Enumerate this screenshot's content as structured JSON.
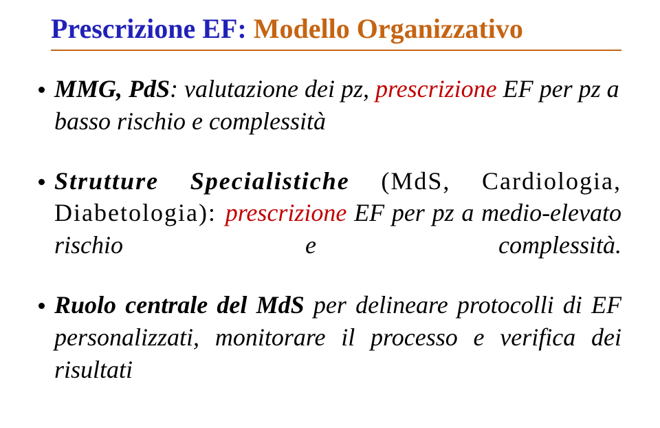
{
  "title": {
    "part1": "Prescrizione EF:",
    "part2": "Modello Organizzativo",
    "color1": "#2121b9",
    "color2": "#c56413",
    "fontsize": 40
  },
  "rule_color": "#c56413",
  "body_fontsize": 36,
  "emphasis_color": "#c00000",
  "bullets": [
    {
      "seg1_bold": "MMG, PdS",
      "seg2": ": valutazione dei pz, ",
      "seg3_em": "prescrizione",
      "seg4_ital": " EF per pz a basso rischio e complessità"
    },
    {
      "seg1_bold": "Strutture Specialistiche",
      "seg2": " (MdS, Cardiologia, Diabetologia): ",
      "seg3_em": "prescrizione",
      "seg4_ital": " EF per pz a medio-elevato rischio e complessità.",
      "justify_last": true
    },
    {
      "seg1_bold": "Ruolo centrale del MdS",
      "seg2_ital": " per delineare protocolli di EF personalizzati, monitorare il processo e verifica dei risultati"
    }
  ]
}
